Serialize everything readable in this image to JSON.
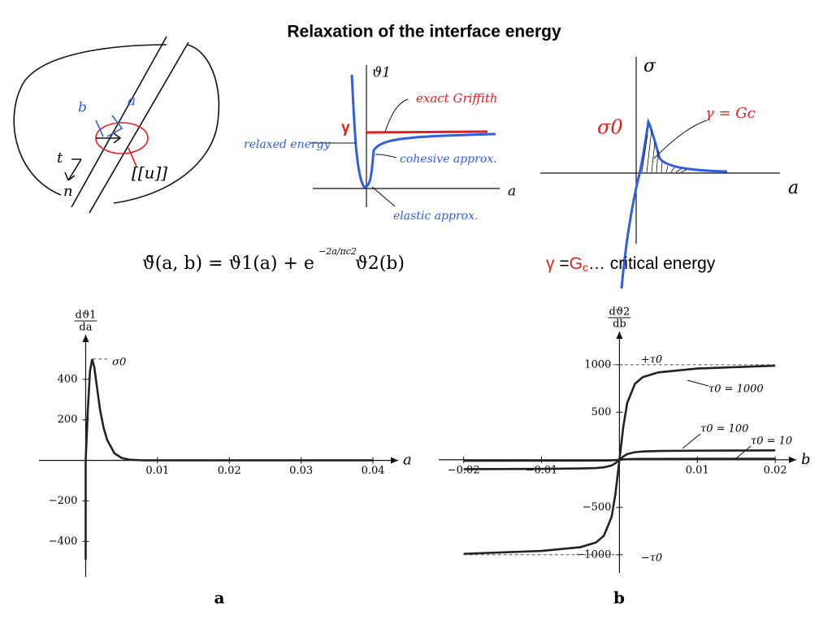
{
  "title": "Relaxation of the interface energy",
  "sketch_crack": {
    "b": "b",
    "a": "a",
    "t": "t",
    "n": "n",
    "jump": "[[u]]"
  },
  "sketch_energy": {
    "axis_y": "ϑ1",
    "griffith": "exact Griffith",
    "relaxed": "relaxed energy",
    "gamma": "γ",
    "cohesive": "cohesive approx.",
    "elastic": "elastic approx.",
    "axis_x": "a"
  },
  "sketch_stress": {
    "axis_y": "σ",
    "sigma0": "σ0",
    "gamma_gc": "γ = Gc",
    "axis_x": "a"
  },
  "formula": {
    "main": "ϑ̄(a, b) = ϑ1(a) + e",
    "exponent": "−2a/πc2",
    "tail": "ϑ2(b)"
  },
  "critical": {
    "gamma": "γ",
    "eq": "=",
    "g": "G",
    "c": "c",
    "rest": "… critical energy"
  },
  "chart_data": [
    {
      "type": "line",
      "caption": "a",
      "x_label": "a",
      "y_label": {
        "numerator": "dϑ1",
        "denominator": "da"
      },
      "annotations": [
        "σ0"
      ],
      "color": "#222222",
      "x": [
        0,
        0,
        0.0003,
        0.0006,
        0.0009,
        0.0012,
        0.0015,
        0.002,
        0.0025,
        0.003,
        0.004,
        0.005,
        0.006,
        0.008,
        0.01,
        0.02,
        0.03,
        0.04
      ],
      "values": [
        -490,
        0,
        250,
        440,
        500,
        460,
        380,
        250,
        160,
        100,
        35,
        12,
        4,
        0,
        0,
        0,
        0,
        0
      ],
      "xlim": [
        -0.0065,
        0.0435
      ],
      "ylim": [
        -575,
        620
      ],
      "xticks": [
        0.01,
        0.02,
        0.03,
        0.04
      ],
      "yticks": [
        {
          "value": -400,
          "label": "−400"
        },
        {
          "value": -200,
          "label": "−200"
        },
        200,
        400
      ]
    },
    {
      "type": "line",
      "caption": "b",
      "x_label": "b",
      "y_label": {
        "numerator": "dϑ2",
        "denominator": "db"
      },
      "annotations": [
        "+τ0",
        "−τ0"
      ],
      "x": [
        -0.02,
        -0.01,
        -0.005,
        -0.003,
        -0.002,
        -0.001,
        -0.0005,
        0,
        0.0005,
        0.001,
        0.002,
        0.003,
        0.005,
        0.01,
        0.02
      ],
      "series": [
        {
          "name": "τ0 = 1000",
          "color": "#222222",
          "values": [
            -990,
            -960,
            -920,
            -870,
            -800,
            -600,
            -350,
            0,
            350,
            600,
            800,
            870,
            920,
            960,
            990
          ]
        },
        {
          "name": "τ0 = 100",
          "color": "#222222",
          "values": [
            -99,
            -96,
            -92,
            -87,
            -80,
            -60,
            -35,
            0,
            35,
            60,
            80,
            87,
            92,
            96,
            99
          ]
        },
        {
          "name": "τ0 = 10",
          "color": "#222222",
          "values": [
            -10,
            -9.6,
            -9.2,
            -8.7,
            -8,
            -6,
            -3.5,
            0,
            3.5,
            6,
            8,
            8.7,
            9.2,
            9.6,
            10
          ]
        }
      ],
      "xlim": [
        -0.0232,
        0.0227
      ],
      "ylim": [
        -1190,
        1350
      ],
      "xticks": [
        {
          "value": -0.02,
          "label": "−0.02"
        },
        {
          "value": -0.01,
          "label": "−0.01"
        },
        0.01,
        0.02
      ],
      "yticks": [
        {
          "value": -1000,
          "label": "−1000"
        },
        {
          "value": -500,
          "label": "−500"
        },
        500,
        1000
      ]
    }
  ]
}
